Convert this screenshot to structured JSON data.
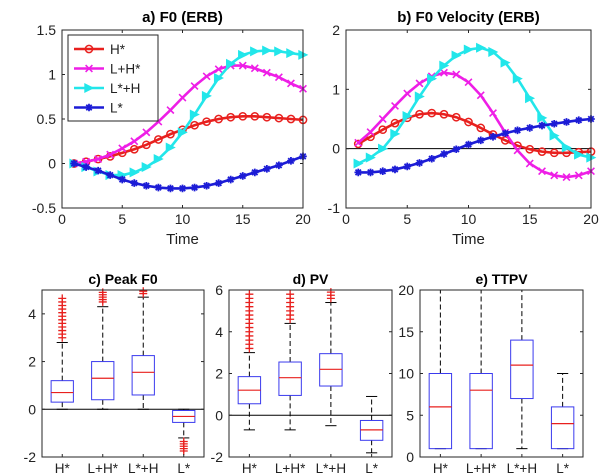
{
  "chart_data": [
    {
      "id": "a",
      "type": "line",
      "title": "a) F0 (ERB)",
      "xlabel": "Time",
      "ylabel": "",
      "xlim": [
        0,
        20
      ],
      "ylim": [
        -0.5,
        1.5
      ],
      "xticks": [
        "0",
        "5",
        "10",
        "15",
        "20"
      ],
      "yticks": [
        "-0.5",
        "0",
        "0.5",
        "1",
        "1.5"
      ],
      "legend_position": "top-left",
      "x": [
        1,
        2,
        3,
        4,
        5,
        6,
        7,
        8,
        9,
        10,
        11,
        12,
        13,
        14,
        15,
        16,
        17,
        18,
        19,
        20
      ],
      "series": [
        {
          "name": "H*",
          "color": "#e8201e",
          "marker": "circle",
          "values": [
            0,
            0.02,
            0.05,
            0.08,
            0.12,
            0.16,
            0.21,
            0.27,
            0.33,
            0.38,
            0.43,
            0.47,
            0.5,
            0.52,
            0.53,
            0.53,
            0.52,
            0.51,
            0.5,
            0.49
          ]
        },
        {
          "name": "L+H*",
          "color": "#ee1ee6",
          "marker": "x",
          "values": [
            0,
            0.02,
            0.05,
            0.1,
            0.17,
            0.25,
            0.35,
            0.47,
            0.6,
            0.74,
            0.87,
            0.98,
            1.06,
            1.1,
            1.1,
            1.07,
            1.02,
            0.97,
            0.9,
            0.84
          ]
        },
        {
          "name": "L*+H",
          "color": "#22e6ea",
          "marker": "triangle",
          "values": [
            0,
            -0.04,
            -0.09,
            -0.13,
            -0.13,
            -0.1,
            -0.04,
            0.05,
            0.18,
            0.35,
            0.55,
            0.76,
            0.96,
            1.12,
            1.22,
            1.26,
            1.27,
            1.26,
            1.24,
            1.22
          ]
        },
        {
          "name": "L*",
          "color": "#1c1cd6",
          "marker": "star",
          "values": [
            0,
            -0.04,
            -0.08,
            -0.13,
            -0.18,
            -0.22,
            -0.25,
            -0.27,
            -0.28,
            -0.28,
            -0.27,
            -0.25,
            -0.22,
            -0.18,
            -0.14,
            -0.1,
            -0.06,
            -0.02,
            0.03,
            0.08
          ]
        }
      ]
    },
    {
      "id": "b",
      "type": "line",
      "title": "b) F0 Velocity (ERB)",
      "xlabel": "Time",
      "ylabel": "",
      "xlim": [
        0,
        20
      ],
      "ylim": [
        -1,
        2
      ],
      "xticks": [
        "0",
        "5",
        "10",
        "15",
        "20"
      ],
      "yticks": [
        "-1",
        "0",
        "1",
        "2"
      ],
      "zero_line": true,
      "x": [
        1,
        2,
        3,
        4,
        5,
        6,
        7,
        8,
        9,
        10,
        11,
        12,
        13,
        14,
        15,
        16,
        17,
        18,
        19,
        20
      ],
      "series": [
        {
          "name": "H*",
          "color": "#e8201e",
          "marker": "circle",
          "values": [
            0.08,
            0.2,
            0.32,
            0.43,
            0.52,
            0.58,
            0.6,
            0.58,
            0.53,
            0.45,
            0.35,
            0.24,
            0.14,
            0.05,
            -0.01,
            -0.05,
            -0.07,
            -0.07,
            -0.06,
            -0.05
          ]
        },
        {
          "name": "L+H*",
          "color": "#ee1ee6",
          "marker": "x",
          "values": [
            0.1,
            0.28,
            0.5,
            0.72,
            0.93,
            1.1,
            1.22,
            1.28,
            1.25,
            1.12,
            0.9,
            0.6,
            0.27,
            -0.03,
            -0.25,
            -0.38,
            -0.45,
            -0.48,
            -0.45,
            -0.38
          ]
        },
        {
          "name": "L*+H",
          "color": "#22e6ea",
          "marker": "triangle",
          "values": [
            -0.25,
            -0.15,
            0.0,
            0.25,
            0.55,
            0.88,
            1.18,
            1.4,
            1.57,
            1.67,
            1.7,
            1.63,
            1.45,
            1.18,
            0.85,
            0.52,
            0.22,
            0.02,
            -0.1,
            -0.15
          ]
        },
        {
          "name": "L*",
          "color": "#1c1cd6",
          "marker": "star",
          "values": [
            -0.4,
            -0.4,
            -0.38,
            -0.35,
            -0.3,
            -0.24,
            -0.17,
            -0.09,
            -0.01,
            0.07,
            0.14,
            0.2,
            0.26,
            0.31,
            0.35,
            0.39,
            0.42,
            0.45,
            0.48,
            0.5
          ]
        }
      ]
    },
    {
      "id": "c",
      "type": "box",
      "title": "c) Peak F0",
      "categories": [
        "H*",
        "L+H*",
        "L*+H",
        "L*"
      ],
      "ylim": [
        -2,
        5
      ],
      "yticks": [
        "-2",
        "0",
        "2",
        "4"
      ],
      "zero_line": true,
      "boxes": [
        {
          "low": 0,
          "q1": 0.3,
          "median": 0.7,
          "q3": 1.2,
          "high": 2.8,
          "outliers": [
            3.0,
            3.15,
            3.3,
            3.45,
            3.6,
            3.75,
            3.9,
            4.05,
            4.2,
            4.35,
            4.5,
            4.65
          ]
        },
        {
          "low": 0,
          "q1": 0.4,
          "median": 1.3,
          "q3": 2.0,
          "high": 4.3,
          "outliers": [
            4.5,
            4.6,
            4.7,
            4.8,
            4.9
          ]
        },
        {
          "low": 0,
          "q1": 0.6,
          "median": 1.55,
          "q3": 2.25,
          "high": 4.7,
          "outliers": [
            4.85,
            4.95
          ]
        },
        {
          "low": -1.2,
          "q1": -0.55,
          "median": -0.3,
          "q3": -0.05,
          "high": 0,
          "outliers": [
            -1.35,
            -1.45,
            -1.55,
            -1.65,
            -1.75
          ]
        }
      ]
    },
    {
      "id": "d",
      "type": "box",
      "title": "d) PV",
      "categories": [
        "H*",
        "L+H*",
        "L*+H",
        "L*"
      ],
      "ylim": [
        -2,
        6
      ],
      "yticks": [
        "-2",
        "0",
        "2",
        "4",
        "6"
      ],
      "zero_line": true,
      "boxes": [
        {
          "low": -0.7,
          "q1": 0.55,
          "median": 1.2,
          "q3": 1.85,
          "high": 3.0,
          "outliers": [
            3.2,
            3.4,
            3.6,
            3.8,
            4.0,
            4.2,
            4.4,
            4.6,
            4.8,
            5.0,
            5.2,
            5.4,
            5.6,
            5.8
          ]
        },
        {
          "low": -0.7,
          "q1": 0.95,
          "median": 1.8,
          "q3": 2.55,
          "high": 4.4,
          "outliers": [
            4.6,
            4.8,
            5.0,
            5.2,
            5.4,
            5.6,
            5.8
          ]
        },
        {
          "low": -0.5,
          "q1": 1.4,
          "median": 2.2,
          "q3": 2.95,
          "high": 5.4,
          "outliers": [
            5.6,
            5.75,
            5.9
          ]
        },
        {
          "low": -1.8,
          "q1": -1.2,
          "median": -0.7,
          "q3": -0.25,
          "high": 0.9,
          "outliers": []
        }
      ]
    },
    {
      "id": "e",
      "type": "box",
      "title": "e) TTPV",
      "categories": [
        "H*",
        "L+H*",
        "L*+H",
        "L*"
      ],
      "ylim": [
        0,
        20
      ],
      "yticks": [
        "0",
        "5",
        "10",
        "15",
        "20"
      ],
      "boxes": [
        {
          "low": 1,
          "q1": 1,
          "median": 6,
          "q3": 10,
          "high": 20,
          "outliers": []
        },
        {
          "low": 1,
          "q1": 1,
          "median": 8,
          "q3": 10,
          "high": 20,
          "outliers": []
        },
        {
          "low": 1,
          "q1": 7,
          "median": 11,
          "q3": 14,
          "high": 20,
          "outliers": []
        },
        {
          "low": 1,
          "q1": 1,
          "median": 4,
          "q3": 6,
          "high": 10,
          "outliers": []
        }
      ]
    }
  ]
}
